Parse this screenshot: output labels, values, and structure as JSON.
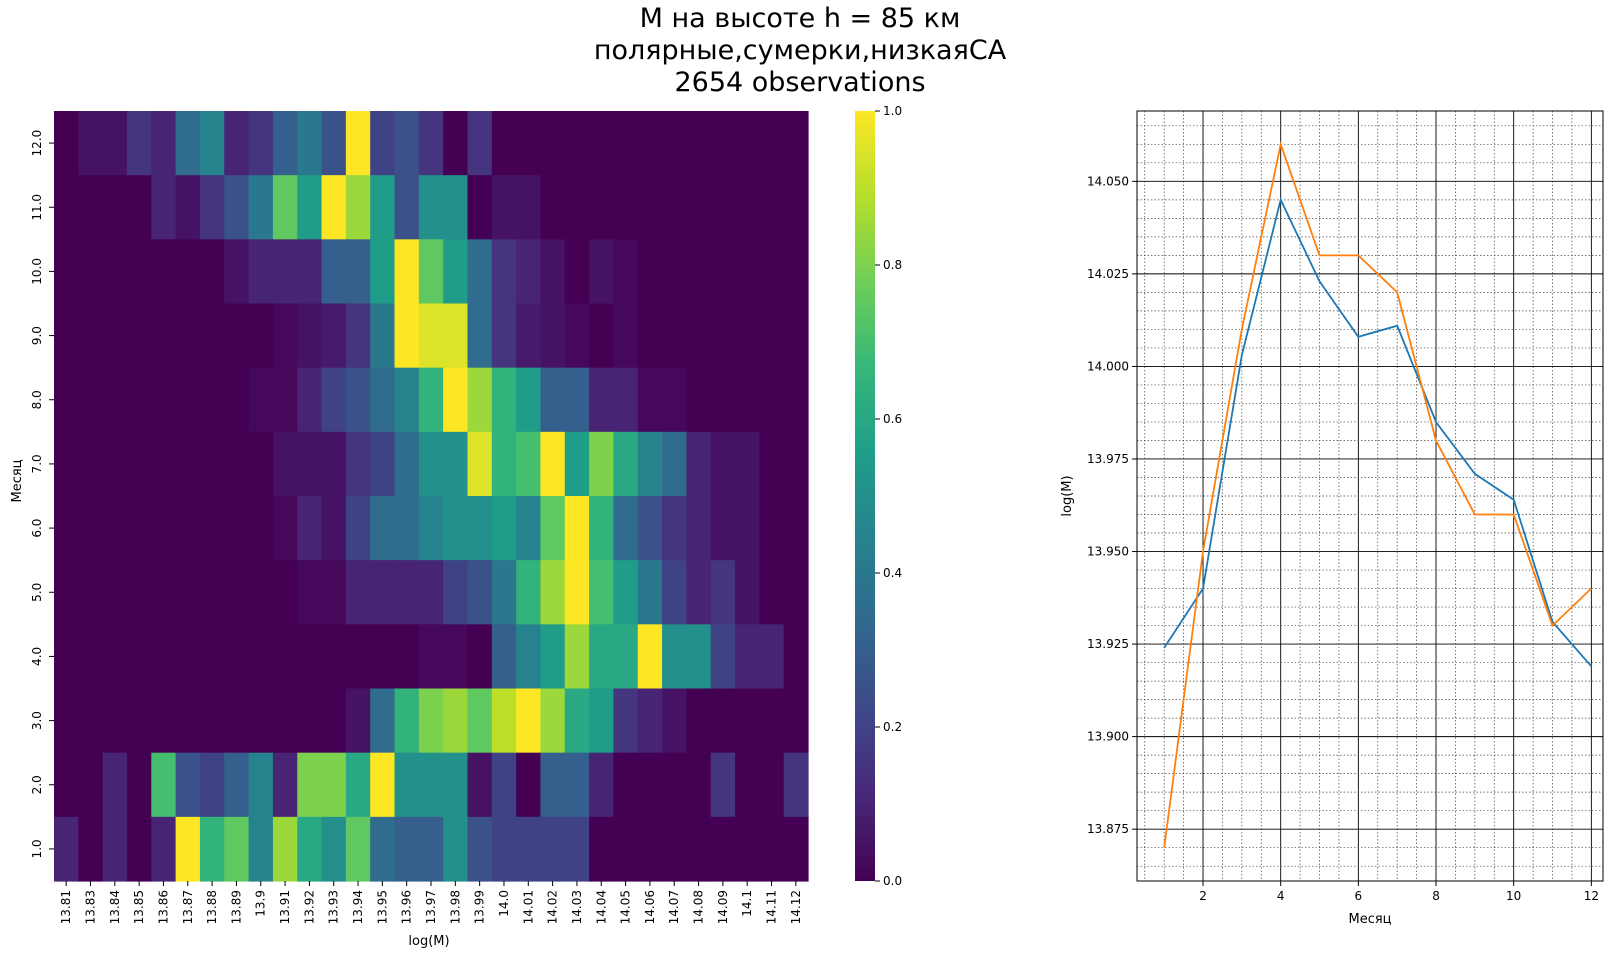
{
  "title_lines": [
    "M на высоте h = 85 км",
    "полярные,сумерки,низкаяСА",
    "2654 observations"
  ],
  "colors": {
    "viridis": [
      "#440154",
      "#482878",
      "#3e4989",
      "#31688e",
      "#26828e",
      "#1f9e89",
      "#35b779",
      "#6ece58",
      "#b5de2b",
      "#fde725"
    ],
    "blue_series": "#1f77b4",
    "orange_series": "#ff7f0e"
  },
  "chart_data": [
    {
      "type": "heatmap",
      "title": "",
      "xlabel": "log(M)",
      "ylabel": "Месяц",
      "x_tick_labels": [
        "13.81",
        "13.83",
        "13.84",
        "13.85",
        "13.86",
        "13.87",
        "13.88",
        "13.89",
        "13.9",
        "13.91",
        "13.92",
        "13.93",
        "13.94",
        "13.95",
        "13.96",
        "13.97",
        "13.98",
        "13.99",
        "14.0",
        "14.01",
        "14.02",
        "14.03",
        "14.04",
        "14.05",
        "14.06",
        "14.07",
        "14.08",
        "14.09",
        "14.1",
        "14.11",
        "14.12"
      ],
      "y_tick_labels": [
        "12.0",
        "11.0",
        "10.0",
        "9.0",
        "8.0",
        "7.0",
        "6.0",
        "5.0",
        "4.0",
        "3.0",
        "2.0",
        "1.0"
      ],
      "colormap": "viridis",
      "colorbar": {
        "range": [
          0,
          1
        ],
        "ticks": [
          "0.0",
          "0.2",
          "0.4",
          "0.6",
          "0.8",
          "1.0"
        ]
      },
      "values": [
        [
          0,
          0.05,
          0.05,
          0.15,
          0.1,
          0.35,
          0.45,
          0.1,
          0.15,
          0.3,
          0.4,
          0.25,
          1,
          0.2,
          0.25,
          0.15,
          0,
          0.15,
          0,
          0,
          0,
          0,
          0,
          0,
          0,
          0,
          0,
          0,
          0,
          0,
          0
        ],
        [
          0,
          0,
          0,
          0,
          0.1,
          0.05,
          0.15,
          0.25,
          0.4,
          0.75,
          0.55,
          1,
          0.85,
          0.55,
          0.25,
          0.5,
          0.5,
          0,
          0.05,
          0.05,
          0,
          0,
          0,
          0,
          0,
          0,
          0,
          0,
          0,
          0,
          0
        ],
        [
          0,
          0,
          0,
          0,
          0,
          0,
          0,
          0.05,
          0.1,
          0.1,
          0.1,
          0.3,
          0.3,
          0.55,
          1,
          0.75,
          0.55,
          0.35,
          0.15,
          0.1,
          0.05,
          0,
          0.05,
          0.02,
          0,
          0,
          0,
          0,
          0,
          0,
          0
        ],
        [
          0,
          0,
          0,
          0,
          0,
          0,
          0,
          0,
          0,
          0.02,
          0.05,
          0.07,
          0.15,
          0.4,
          1,
          0.95,
          0.95,
          0.35,
          0.15,
          0.07,
          0.05,
          0.02,
          0,
          0.02,
          0,
          0,
          0,
          0,
          0,
          0,
          0
        ],
        [
          0,
          0,
          0,
          0,
          0,
          0,
          0,
          0,
          0.02,
          0.02,
          0.1,
          0.2,
          0.25,
          0.35,
          0.45,
          0.65,
          1,
          0.85,
          0.65,
          0.55,
          0.3,
          0.3,
          0.1,
          0.1,
          0.02,
          0.02,
          0,
          0,
          0,
          0,
          0
        ],
        [
          0,
          0,
          0,
          0,
          0,
          0,
          0,
          0,
          0,
          0.05,
          0.05,
          0.05,
          0.15,
          0.2,
          0.35,
          0.5,
          0.5,
          0.95,
          0.65,
          0.7,
          1,
          0.55,
          0.8,
          0.6,
          0.45,
          0.35,
          0.1,
          0.05,
          0.05,
          0,
          0
        ],
        [
          0,
          0,
          0,
          0,
          0,
          0,
          0,
          0,
          0,
          0.02,
          0.1,
          0.05,
          0.2,
          0.35,
          0.35,
          0.45,
          0.5,
          0.5,
          0.55,
          0.45,
          0.75,
          1,
          0.65,
          0.35,
          0.25,
          0.15,
          0.1,
          0.05,
          0.05,
          0,
          0
        ],
        [
          0,
          0,
          0,
          0,
          0,
          0,
          0,
          0,
          0,
          0,
          0.02,
          0.02,
          0.1,
          0.1,
          0.1,
          0.1,
          0.2,
          0.25,
          0.4,
          0.65,
          0.85,
          1,
          0.7,
          0.55,
          0.4,
          0.2,
          0.1,
          0.15,
          0.05,
          0,
          0
        ],
        [
          0,
          0,
          0,
          0,
          0,
          0,
          0,
          0,
          0,
          0,
          0,
          0,
          0,
          0,
          0,
          0.02,
          0.02,
          0,
          0.3,
          0.45,
          0.55,
          0.85,
          0.6,
          0.6,
          1,
          0.5,
          0.5,
          0.2,
          0.1,
          0.1,
          0
        ],
        [
          0,
          0,
          0,
          0,
          0,
          0,
          0,
          0,
          0,
          0,
          0,
          0,
          0.05,
          0.35,
          0.65,
          0.8,
          0.85,
          0.75,
          0.9,
          1,
          0.85,
          0.6,
          0.55,
          0.15,
          0.1,
          0.05,
          0,
          0,
          0,
          0,
          0
        ],
        [
          0,
          0,
          0.1,
          0,
          0.7,
          0.25,
          0.2,
          0.3,
          0.45,
          0.1,
          0.8,
          0.8,
          0.6,
          1,
          0.5,
          0.5,
          0.5,
          0.05,
          0.2,
          0,
          0.3,
          0.3,
          0.1,
          0,
          0,
          0,
          0,
          0.15,
          0,
          0,
          0.15
        ],
        [
          0.1,
          0,
          0.1,
          0,
          0.1,
          1,
          0.65,
          0.75,
          0.45,
          0.85,
          0.6,
          0.5,
          0.75,
          0.35,
          0.3,
          0.3,
          0.5,
          0.25,
          0.2,
          0.2,
          0.2,
          0.2,
          0,
          0,
          0,
          0,
          0,
          0,
          0,
          0,
          0
        ]
      ]
    },
    {
      "type": "line",
      "title": "",
      "xlabel": "Месяц",
      "ylabel": "log(M)",
      "x": [
        1,
        2,
        3,
        4,
        5,
        6,
        7,
        8,
        9,
        10,
        11,
        12
      ],
      "xlim": [
        0.3,
        12.3
      ],
      "ylim": [
        13.861,
        14.069
      ],
      "x_ticks": [
        "2",
        "4",
        "6",
        "8",
        "10",
        "12"
      ],
      "y_ticks": [
        "13.875",
        "13.900",
        "13.925",
        "13.950",
        "13.975",
        "14.000",
        "14.025",
        "14.050"
      ],
      "grid": "major and minor",
      "series": [
        {
          "color": "#1f77b4",
          "values": [
            13.924,
            13.94,
            14.003,
            14.045,
            14.023,
            14.008,
            14.011,
            13.985,
            13.971,
            13.964,
            13.931,
            13.919
          ]
        },
        {
          "color": "#ff7f0e",
          "values": [
            13.87,
            13.95,
            14.01,
            14.06,
            14.03,
            14.03,
            14.02,
            13.98,
            13.96,
            13.96,
            13.93,
            13.94
          ]
        }
      ]
    }
  ]
}
